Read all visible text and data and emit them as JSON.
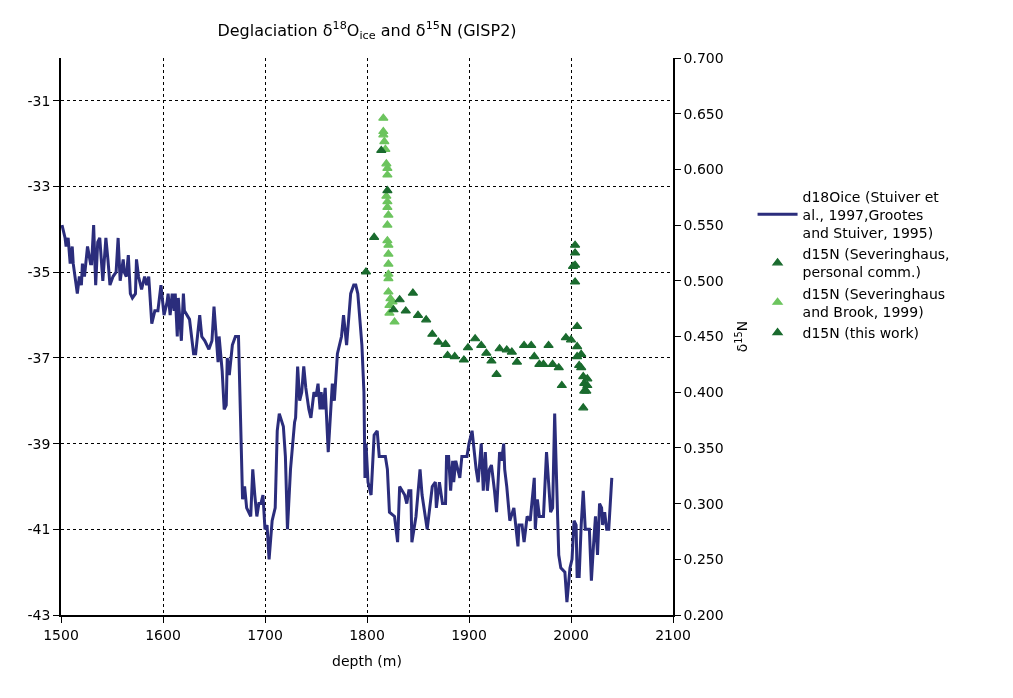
{
  "chart_data": {
    "type": "line",
    "title": "Deglaciation δ$^{18}$O$_{ice}$ and δ$^{15}$N (GISP2)",
    "xlabel": "depth (m)",
    "y2label": "δ$^{15}$N",
    "xlim": [
      1500,
      2100
    ],
    "xticks": [
      1500,
      1600,
      1700,
      1800,
      1900,
      2000,
      2100
    ],
    "ylim": [
      -43,
      -30
    ],
    "yticks": [
      -43,
      -41,
      -39,
      -37,
      -35,
      -33,
      -31
    ],
    "y2lim": [
      0.2,
      0.7
    ],
    "y2ticks": [
      {
        "value": 0.2,
        "label": "0.200"
      },
      {
        "value": 0.25,
        "label": "0.250"
      },
      {
        "value": 0.3,
        "label": "0.300"
      },
      {
        "value": 0.35,
        "label": "0.350"
      },
      {
        "value": 0.4,
        "label": "0.400"
      },
      {
        "value": 0.45,
        "label": "0.450"
      },
      {
        "value": 0.5,
        "label": "0.500"
      },
      {
        "value": 0.55,
        "label": "0.550"
      },
      {
        "value": 0.6,
        "label": "0.600"
      },
      {
        "value": 0.65,
        "label": "0.650"
      },
      {
        "value": 0.7,
        "label": "0.700"
      }
    ],
    "grid": true,
    "legend": "right",
    "series": [
      {
        "name": "d18Oice (Stuiver et al., 1997,Grootes and Stuiver, 1995)",
        "color": "#2b2d7c",
        "line_style": "solid",
        "marker": "none",
        "x": [
          1501,
          1504,
          1505,
          1507,
          1509,
          1511,
          1512,
          1516,
          1518,
          1520,
          1521,
          1523,
          1526,
          1529,
          1530,
          1532,
          1534,
          1536,
          1538,
          1541,
          1544,
          1546,
          1548,
          1551,
          1554,
          1556,
          1558,
          1561,
          1562,
          1564,
          1566,
          1568,
          1570,
          1573,
          1574,
          1576,
          1579,
          1582,
          1584,
          1586,
          1589,
          1592,
          1595,
          1598,
          1601,
          1604,
          1605,
          1607,
          1609,
          1611,
          1612,
          1614,
          1615,
          1618,
          1620,
          1621,
          1626,
          1630,
          1632,
          1636,
          1638,
          1641,
          1645,
          1648,
          1650,
          1654,
          1655,
          1658,
          1660,
          1662,
          1663,
          1665,
          1668,
          1671,
          1674,
          1676,
          1678,
          1680,
          1682,
          1686,
          1688,
          1690,
          1692,
          1694,
          1696,
          1698,
          1700,
          1702,
          1704,
          1707,
          1710,
          1712,
          1714,
          1718,
          1720,
          1722,
          1725,
          1729,
          1730,
          1732,
          1734,
          1736,
          1738,
          1740,
          1743,
          1745,
          1748,
          1750,
          1752,
          1754,
          1755,
          1757,
          1759,
          1762,
          1766,
          1768,
          1771,
          1775,
          1777,
          1780,
          1784,
          1787,
          1789,
          1791,
          1795,
          1797,
          1798,
          1799,
          1801,
          1804,
          1807,
          1810,
          1812,
          1818,
          1820,
          1822,
          1827,
          1830,
          1832,
          1837,
          1839,
          1841,
          1843,
          1844,
          1848,
          1852,
          1854,
          1859,
          1864,
          1867,
          1868,
          1871,
          1874,
          1877,
          1878,
          1880,
          1882,
          1884,
          1885,
          1887,
          1891,
          1893,
          1898,
          1900,
          1903,
          1907,
          1909,
          1912,
          1914,
          1916,
          1918,
          1920,
          1922,
          1925,
          1927,
          1930,
          1932,
          1934,
          1935,
          1937,
          1940,
          1944,
          1948,
          1949,
          1952,
          1954,
          1957,
          1960,
          1964,
          1965,
          1967,
          1969,
          1973,
          1976,
          1978,
          1980,
          1982,
          1984,
          1987,
          1988,
          1990,
          1994,
          1996,
          1999,
          2001,
          2003,
          2005,
          2006,
          2008,
          2010,
          2012,
          2014,
          2018,
          2020,
          2022,
          2024,
          2026,
          2028,
          2030,
          2031,
          2033,
          2035,
          2037,
          2040
        ],
        "values": [
          -33.9,
          -34.2,
          -34.4,
          -34.2,
          -34.8,
          -34.4,
          -34.8,
          -35.5,
          -35.1,
          -35.3,
          -34.8,
          -35.1,
          -34.4,
          -34.8,
          -34.8,
          -33.9,
          -35.3,
          -34.3,
          -34.2,
          -35.2,
          -34.2,
          -34.7,
          -35.3,
          -35.1,
          -35.0,
          -34.2,
          -35.2,
          -34.7,
          -35.0,
          -35.1,
          -34.6,
          -35.5,
          -35.6,
          -35.5,
          -34.7,
          -35.1,
          -35.4,
          -35.1,
          -35.3,
          -35.1,
          -36.2,
          -35.9,
          -35.9,
          -35.3,
          -36.0,
          -35.7,
          -35.5,
          -36.0,
          -35.5,
          -35.9,
          -35.5,
          -36.5,
          -35.6,
          -36.6,
          -35.5,
          -35.9,
          -36.1,
          -36.9,
          -36.9,
          -36.0,
          -36.5,
          -36.6,
          -36.8,
          -36.6,
          -35.8,
          -37.1,
          -36.5,
          -37.3,
          -38.2,
          -38.1,
          -37.0,
          -37.4,
          -36.7,
          -36.5,
          -36.5,
          -38.4,
          -40.3,
          -40.0,
          -40.5,
          -40.7,
          -39.6,
          -40.2,
          -40.7,
          -40.4,
          -40.4,
          -40.2,
          -41.0,
          -40.9,
          -41.7,
          -40.8,
          -40.5,
          -38.7,
          -38.3,
          -38.6,
          -39.3,
          -41.0,
          -39.6,
          -38.5,
          -38.4,
          -37.2,
          -38.0,
          -37.8,
          -37.2,
          -37.7,
          -38.2,
          -38.4,
          -37.8,
          -37.9,
          -37.6,
          -38.2,
          -37.8,
          -38.2,
          -37.7,
          -39.2,
          -37.6,
          -38.0,
          -36.9,
          -36.5,
          -36.0,
          -36.7,
          -35.5,
          -35.3,
          -35.3,
          -35.5,
          -36.7,
          -37.8,
          -39.8,
          -39.0,
          -39.9,
          -40.2,
          -38.8,
          -38.7,
          -39.3,
          -39.3,
          -39.6,
          -40.6,
          -40.7,
          -41.3,
          -40.0,
          -40.2,
          -40.4,
          -40.1,
          -40.1,
          -41.3,
          -40.7,
          -39.6,
          -40.2,
          -41.0,
          -40.0,
          -39.9,
          -40.5,
          -39.9,
          -40.4,
          -40.4,
          -39.3,
          -39.3,
          -40.1,
          -39.4,
          -39.9,
          -39.4,
          -39.8,
          -39.3,
          -39.3,
          -39.0,
          -38.7,
          -39.6,
          -39.9,
          -39.0,
          -40.1,
          -39.2,
          -40.1,
          -39.6,
          -39.5,
          -40.1,
          -40.6,
          -39.2,
          -39.4,
          -39.0,
          -39.6,
          -40.0,
          -40.8,
          -40.5,
          -41.4,
          -40.9,
          -40.9,
          -41.3,
          -40.7,
          -40.8,
          -39.8,
          -41.0,
          -40.3,
          -40.7,
          -40.7,
          -39.2,
          -39.9,
          -40.6,
          -40.5,
          -38.3,
          -40.8,
          -41.6,
          -41.9,
          -42.0,
          -42.7,
          -41.9,
          -41.7,
          -40.8,
          -40.9,
          -42.1,
          -42.1,
          -40.9,
          -40.1,
          -41.0,
          -41.0,
          -42.2,
          -41.4,
          -40.7,
          -41.6,
          -40.4,
          -40.5,
          -40.9,
          -40.6,
          -41.0,
          -41.0,
          -39.8
        ]
      },
      {
        "name": "d15N (Severinghaus, personal comm.)",
        "type": "scatter",
        "axis": "y2",
        "color": "#1a6b2e",
        "marker": "triangle",
        "x": [
          2004,
          2004,
          2004,
          2004,
          2006,
          2006,
          2010,
          2006,
          2008,
          2010,
          2012,
          2016,
          2013,
          2016,
          2013,
          2015,
          2012
        ],
        "values": [
          0.532,
          0.525,
          0.514,
          0.499,
          0.459,
          0.441,
          0.434,
          0.432,
          0.424,
          0.422,
          0.414,
          0.412,
          0.408,
          0.406,
          0.401,
          0.401,
          0.386
        ]
      },
      {
        "name": "d15N (Severinghaus and Brook, 1999)",
        "type": "scatter",
        "axis": "y2",
        "color": "#6cc45e",
        "marker": "triangle",
        "x": [
          1816,
          1816,
          1816,
          1817,
          1818,
          1819,
          1820,
          1820,
          1819,
          1820,
          1820,
          1821,
          1820,
          1820,
          1821,
          1821,
          1821,
          1821,
          1821,
          1821,
          1823,
          1822,
          1825,
          1822,
          1827
        ],
        "values": [
          0.646,
          0.634,
          0.631,
          0.625,
          0.618,
          0.605,
          0.601,
          0.595,
          0.576,
          0.571,
          0.566,
          0.559,
          0.55,
          0.536,
          0.532,
          0.524,
          0.515,
          0.506,
          0.502,
          0.49,
          0.484,
          0.478,
          0.481,
          0.471,
          0.463
        ]
      },
      {
        "name": "d15N (this work)",
        "type": "scatter",
        "axis": "y2",
        "color": "#1a6b2e",
        "marker": "triangle",
        "x": [
          1799,
          1807,
          1814,
          1820,
          1826,
          1832,
          1838,
          1845,
          1850,
          1858,
          1864,
          1870,
          1877,
          1879,
          1886,
          1895,
          1899,
          1906,
          1912,
          1917,
          1922,
          1927,
          1930,
          1937,
          1942,
          1947,
          1954,
          1961,
          1964,
          1969,
          1973,
          1978,
          1982,
          1988,
          1991,
          1995,
          2000,
          2002
        ],
        "values": [
          0.508,
          0.539,
          0.617,
          0.581,
          0.474,
          0.483,
          0.473,
          0.489,
          0.469,
          0.465,
          0.452,
          0.445,
          0.443,
          0.433,
          0.432,
          0.429,
          0.44,
          0.448,
          0.442,
          0.435,
          0.428,
          0.416,
          0.439,
          0.438,
          0.436,
          0.427,
          0.442,
          0.442,
          0.432,
          0.425,
          0.425,
          0.442,
          0.425,
          0.422,
          0.406,
          0.449,
          0.447,
          0.513
        ]
      }
    ]
  }
}
